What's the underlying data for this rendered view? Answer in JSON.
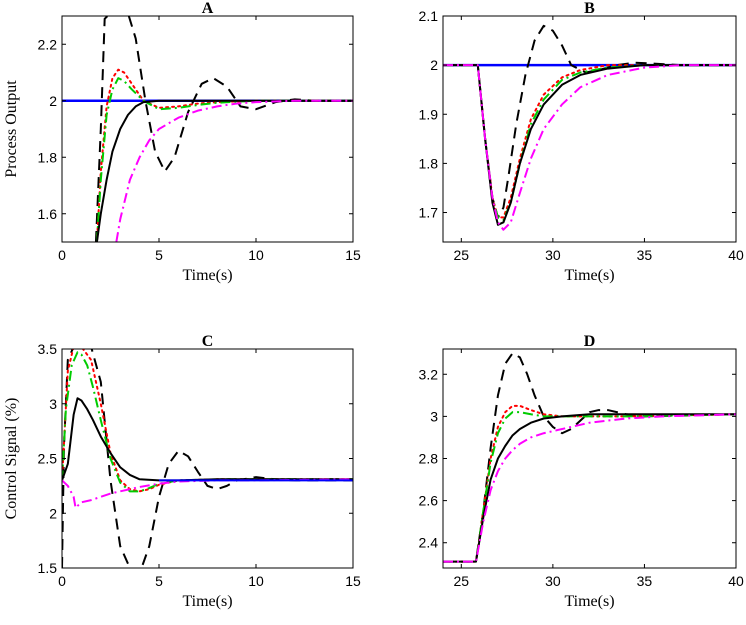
{
  "chart_data": [
    {
      "id": "A",
      "type": "line",
      "title": "A",
      "xlabel": "Time(s)",
      "ylabel": "Process Output",
      "xlim": [
        0,
        15
      ],
      "ylim": [
        1.5,
        2.3
      ],
      "xticks": [
        0,
        5,
        10,
        15
      ],
      "yticks": [
        1.6,
        1.8,
        2.0,
        2.2
      ],
      "xtick_labels": [
        "0",
        "5",
        "10",
        "15"
      ],
      "ytick_labels": [
        "1.6",
        "1.8",
        "2",
        "2.2"
      ],
      "series": [
        {
          "name": "setpoint",
          "color": "#0000ff",
          "style": "solid",
          "width": 2.5,
          "x": [
            0,
            15
          ],
          "y": [
            2.0,
            2.0
          ]
        },
        {
          "name": "dashed-black",
          "color": "#000000",
          "style": "dash",
          "width": 2,
          "x": [
            1.75,
            2.0,
            2.2,
            2.5,
            3.0,
            3.4,
            3.8,
            4.3,
            4.8,
            5.3,
            5.8,
            6.5,
            7.2,
            7.8,
            8.5,
            9.2,
            10.0,
            11.0,
            12.0,
            13.0,
            14.0,
            15.0
          ],
          "y": [
            1.5,
            1.9,
            2.29,
            2.31,
            2.31,
            2.31,
            2.22,
            2.0,
            1.82,
            1.75,
            1.8,
            1.96,
            2.06,
            2.08,
            2.05,
            1.98,
            1.97,
            1.995,
            2.005,
            2.0,
            2.0,
            2.0
          ]
        },
        {
          "name": "dotted-red",
          "color": "#ff0000",
          "style": "dot",
          "width": 2,
          "x": [
            1.8,
            2.0,
            2.3,
            2.6,
            2.9,
            3.2,
            3.6,
            4.2,
            5.0,
            6.0,
            7.0,
            8.0,
            10.0,
            12.0,
            15.0
          ],
          "y": [
            1.5,
            1.75,
            1.98,
            2.08,
            2.11,
            2.1,
            2.06,
            2.0,
            1.975,
            1.98,
            1.99,
            1.995,
            2.0,
            2.0,
            2.0
          ]
        },
        {
          "name": "dashdot-green",
          "color": "#00cc00",
          "style": "dashdot",
          "width": 2,
          "x": [
            1.8,
            2.0,
            2.3,
            2.6,
            2.9,
            3.2,
            3.6,
            4.2,
            5.0,
            6.0,
            7.0,
            8.0,
            10.0,
            12.0,
            15.0
          ],
          "y": [
            1.5,
            1.72,
            1.95,
            2.04,
            2.08,
            2.07,
            2.04,
            2.0,
            1.97,
            1.975,
            1.985,
            1.993,
            2.0,
            2.0,
            2.0
          ]
        },
        {
          "name": "solid-black",
          "color": "#000000",
          "style": "solid",
          "width": 2,
          "x": [
            1.8,
            2.0,
            2.3,
            2.6,
            3.0,
            3.4,
            3.8,
            4.2,
            5.0,
            6.0,
            8.0,
            10.0,
            15.0
          ],
          "y": [
            1.5,
            1.6,
            1.72,
            1.82,
            1.9,
            1.95,
            1.98,
            1.995,
            2.0,
            2.0,
            2.0,
            2.0,
            2.0
          ]
        },
        {
          "name": "dashdot-magenta",
          "color": "#ff00ff",
          "style": "dashdot",
          "width": 2,
          "x": [
            2.8,
            3.0,
            3.5,
            4.0,
            4.5,
            5.0,
            6.0,
            7.0,
            8.0,
            9.0,
            10.0,
            12.0,
            15.0
          ],
          "y": [
            1.5,
            1.58,
            1.72,
            1.8,
            1.86,
            1.9,
            1.94,
            1.965,
            1.98,
            1.99,
            1.995,
            2.0,
            2.0
          ]
        }
      ]
    },
    {
      "id": "B",
      "type": "line",
      "title": "B",
      "xlabel": "Time(s)",
      "ylabel": "",
      "xlim": [
        24,
        40
      ],
      "ylim": [
        1.64,
        2.1
      ],
      "xticks": [
        25,
        30,
        35,
        40
      ],
      "yticks": [
        1.7,
        1.8,
        1.9,
        2.0,
        2.1
      ],
      "xtick_labels": [
        "25",
        "30",
        "35",
        "40"
      ],
      "ytick_labels": [
        "1.7",
        "1.8",
        "1.9",
        "2",
        "2.1"
      ],
      "series": [
        {
          "name": "setpoint",
          "color": "#0000ff",
          "style": "solid",
          "width": 2.5,
          "x": [
            24,
            40
          ],
          "y": [
            2.0,
            2.0
          ]
        },
        {
          "name": "dashed-black",
          "color": "#000000",
          "style": "dash",
          "width": 2,
          "x": [
            24,
            25.9,
            26.3,
            26.7,
            27.0,
            27.3,
            27.6,
            28.0,
            28.5,
            29.0,
            29.5,
            30.0,
            30.5,
            31.0,
            31.8,
            32.5,
            33.5,
            34.5,
            35.5,
            37.0,
            40.0
          ],
          "y": [
            2.0,
            2.0,
            1.85,
            1.73,
            1.69,
            1.71,
            1.78,
            1.88,
            1.98,
            2.05,
            2.08,
            2.07,
            2.04,
            2.0,
            1.985,
            1.99,
            2.0,
            2.005,
            2.003,
            2.0,
            2.0
          ]
        },
        {
          "name": "dotted-red",
          "color": "#ff0000",
          "style": "dot",
          "width": 2,
          "x": [
            24,
            25.9,
            26.3,
            26.7,
            27.0,
            27.3,
            27.7,
            28.2,
            28.8,
            29.5,
            30.5,
            31.5,
            33.0,
            35.0,
            40.0
          ],
          "y": [
            2.0,
            2.0,
            1.85,
            1.73,
            1.69,
            1.69,
            1.73,
            1.81,
            1.89,
            1.94,
            1.975,
            1.99,
            2.0,
            2.0,
            2.0
          ]
        },
        {
          "name": "dashdot-green",
          "color": "#00cc00",
          "style": "dashdot",
          "width": 2,
          "x": [
            24,
            25.9,
            26.3,
            26.7,
            27.0,
            27.3,
            27.7,
            28.2,
            28.8,
            29.5,
            30.5,
            31.5,
            33.0,
            35.0,
            40.0
          ],
          "y": [
            2.0,
            2.0,
            1.85,
            1.73,
            1.69,
            1.685,
            1.72,
            1.8,
            1.88,
            1.93,
            1.97,
            1.985,
            1.995,
            2.0,
            2.0
          ]
        },
        {
          "name": "solid-black",
          "color": "#000000",
          "style": "solid",
          "width": 2,
          "x": [
            24,
            25.9,
            26.3,
            26.7,
            27.0,
            27.3,
            27.7,
            28.2,
            28.8,
            29.5,
            30.5,
            31.5,
            33.0,
            35.0,
            40.0
          ],
          "y": [
            2.0,
            2.0,
            1.85,
            1.72,
            1.675,
            1.68,
            1.72,
            1.8,
            1.87,
            1.92,
            1.96,
            1.98,
            1.993,
            2.0,
            2.0
          ]
        },
        {
          "name": "dashdot-magenta",
          "color": "#ff00ff",
          "style": "dashdot",
          "width": 2,
          "x": [
            24,
            25.9,
            26.3,
            26.7,
            27.0,
            27.3,
            27.7,
            28.2,
            28.8,
            29.5,
            30.5,
            31.5,
            33.0,
            35.0,
            37.0,
            40.0
          ],
          "y": [
            2.0,
            2.0,
            1.85,
            1.73,
            1.68,
            1.665,
            1.68,
            1.74,
            1.81,
            1.87,
            1.92,
            1.955,
            1.98,
            1.995,
            2.0,
            2.0
          ]
        }
      ]
    },
    {
      "id": "C",
      "type": "line",
      "title": "C",
      "xlabel": "Time(s)",
      "ylabel": "Control Signal (%)",
      "xlim": [
        0,
        15
      ],
      "ylim": [
        1.5,
        3.5
      ],
      "xticks": [
        0,
        5,
        10,
        15
      ],
      "yticks": [
        1.5,
        2.0,
        2.5,
        3.0,
        3.5
      ],
      "xtick_labels": [
        "0",
        "5",
        "10",
        "15"
      ],
      "ytick_labels": [
        "1.5",
        "2",
        "2.5",
        "3",
        "3.5"
      ],
      "series": [
        {
          "name": "dashed-black",
          "color": "#000000",
          "style": "dash",
          "width": 2,
          "x": [
            0,
            0.1,
            0.3,
            0.6,
            1.0,
            1.5,
            2.0,
            2.5,
            3.0,
            3.5,
            4.0,
            4.5,
            5.0,
            5.5,
            6.0,
            6.5,
            7.0,
            7.5,
            8.0,
            8.5,
            9.0,
            10.0,
            11.0,
            12.0,
            15.0
          ],
          "y": [
            1.5,
            2.6,
            3.4,
            3.52,
            3.52,
            3.52,
            3.2,
            2.3,
            1.7,
            1.5,
            1.45,
            1.7,
            2.15,
            2.45,
            2.57,
            2.52,
            2.38,
            2.25,
            2.22,
            2.25,
            2.3,
            2.33,
            2.31,
            2.3,
            2.3
          ]
        },
        {
          "name": "dotted-red",
          "color": "#ff0000",
          "style": "dot",
          "width": 2,
          "x": [
            0,
            0.3,
            0.6,
            1.0,
            1.5,
            2.0,
            2.5,
            3.0,
            3.5,
            4.0,
            4.5,
            5.0,
            6.0,
            8.0,
            10.0,
            15.0
          ],
          "y": [
            2.3,
            3.3,
            3.52,
            3.52,
            3.4,
            3.0,
            2.55,
            2.3,
            2.22,
            2.2,
            2.22,
            2.26,
            2.3,
            2.31,
            2.31,
            2.31
          ]
        },
        {
          "name": "dashdot-green",
          "color": "#00cc00",
          "style": "dashdot",
          "width": 2,
          "x": [
            0,
            0.2,
            0.5,
            0.8,
            1.0,
            1.3,
            1.6,
            2.0,
            2.5,
            3.0,
            3.5,
            4.0,
            4.5,
            5.0,
            6.0,
            8.0,
            10.0,
            15.0
          ],
          "y": [
            2.3,
            2.95,
            3.35,
            3.47,
            3.45,
            3.35,
            3.15,
            2.85,
            2.5,
            2.28,
            2.2,
            2.2,
            2.23,
            2.27,
            2.3,
            2.31,
            2.31,
            2.31
          ]
        },
        {
          "name": "solid-black",
          "color": "#000000",
          "style": "solid",
          "width": 2,
          "x": [
            0,
            0.3,
            0.6,
            0.8,
            1.0,
            1.3,
            1.6,
            2.0,
            2.5,
            3.0,
            3.5,
            4.0,
            5.0,
            6.0,
            8.0,
            10.0,
            12.0,
            15.0
          ],
          "y": [
            2.3,
            2.45,
            2.9,
            3.05,
            3.03,
            2.95,
            2.85,
            2.7,
            2.55,
            2.42,
            2.35,
            2.31,
            2.3,
            2.3,
            2.31,
            2.31,
            2.31,
            2.31
          ]
        },
        {
          "name": "dashdot-magenta",
          "color": "#ff00ff",
          "style": "dashdot",
          "width": 2,
          "x": [
            0,
            0.3,
            0.6,
            0.7,
            1.0,
            1.5,
            2.0,
            2.5,
            3.0,
            3.5,
            4.0,
            5.0,
            6.0,
            8.0,
            10.0,
            15.0
          ],
          "y": [
            2.3,
            2.25,
            2.15,
            2.05,
            2.1,
            2.12,
            2.15,
            2.18,
            2.2,
            2.22,
            2.24,
            2.27,
            2.29,
            2.3,
            2.3,
            2.31
          ]
        },
        {
          "name": "setpoint",
          "color": "#0000ff",
          "style": "solid",
          "width": 2,
          "x": [
            5.0,
            15.0
          ],
          "y": [
            2.3,
            2.3
          ]
        }
      ]
    },
    {
      "id": "D",
      "type": "line",
      "title": "D",
      "xlabel": "Time(s)",
      "ylabel": "",
      "xlim": [
        24,
        40
      ],
      "ylim": [
        2.28,
        3.32
      ],
      "xticks": [
        25,
        30,
        35,
        40
      ],
      "yticks": [
        2.4,
        2.6,
        2.8,
        3.0,
        3.2
      ],
      "xtick_labels": [
        "25",
        "30",
        "35",
        "40"
      ],
      "ytick_labels": [
        "2.4",
        "2.6",
        "2.8",
        "3",
        "3.2"
      ],
      "series": [
        {
          "name": "dashed-black",
          "color": "#000000",
          "style": "dash",
          "width": 2,
          "x": [
            24,
            25.8,
            26.2,
            26.6,
            27.0,
            27.4,
            27.8,
            28.2,
            28.6,
            29.0,
            29.5,
            30.0,
            30.5,
            31.0,
            31.5,
            32.0,
            32.5,
            33.0,
            34.0,
            35.0,
            40.0
          ],
          "y": [
            2.31,
            2.31,
            2.55,
            2.85,
            3.1,
            3.25,
            3.3,
            3.28,
            3.2,
            3.1,
            3.0,
            2.95,
            2.92,
            2.94,
            2.98,
            3.02,
            3.03,
            3.03,
            3.01,
            3.0,
            3.01
          ]
        },
        {
          "name": "dotted-red",
          "color": "#ff0000",
          "style": "dot",
          "width": 2,
          "x": [
            24,
            25.8,
            26.2,
            26.6,
            27.0,
            27.4,
            27.8,
            28.2,
            28.8,
            29.5,
            30.5,
            32.0,
            34.0,
            40.0
          ],
          "y": [
            2.31,
            2.31,
            2.55,
            2.8,
            2.95,
            3.02,
            3.05,
            3.05,
            3.03,
            3.01,
            3.0,
            3.0,
            3.0,
            3.01
          ]
        },
        {
          "name": "dashdot-green",
          "color": "#00cc00",
          "style": "dashdot",
          "width": 2,
          "x": [
            24,
            25.8,
            26.2,
            26.6,
            27.0,
            27.4,
            27.8,
            28.2,
            28.8,
            29.5,
            30.5,
            32.0,
            34.0,
            40.0
          ],
          "y": [
            2.31,
            2.31,
            2.55,
            2.78,
            2.92,
            2.99,
            3.02,
            3.02,
            3.01,
            3.0,
            3.0,
            3.0,
            3.0,
            3.01
          ]
        },
        {
          "name": "solid-black",
          "color": "#000000",
          "style": "solid",
          "width": 2,
          "x": [
            24,
            25.8,
            26.2,
            26.6,
            27.0,
            27.4,
            27.8,
            28.2,
            28.8,
            29.5,
            30.5,
            32.0,
            34.0,
            40.0
          ],
          "y": [
            2.31,
            2.31,
            2.52,
            2.7,
            2.8,
            2.86,
            2.91,
            2.94,
            2.97,
            2.99,
            3.0,
            3.01,
            3.01,
            3.01
          ]
        },
        {
          "name": "dashdot-magenta",
          "color": "#ff00ff",
          "style": "dashdot",
          "width": 2,
          "x": [
            24,
            25.8,
            26.2,
            26.6,
            27.0,
            27.4,
            27.8,
            28.2,
            28.8,
            29.5,
            30.0,
            31.0,
            32.0,
            33.0,
            34.0,
            36.0,
            40.0
          ],
          "y": [
            2.31,
            2.31,
            2.5,
            2.65,
            2.74,
            2.8,
            2.84,
            2.87,
            2.9,
            2.92,
            2.93,
            2.95,
            2.97,
            2.98,
            2.99,
            3.0,
            3.01
          ]
        }
      ]
    }
  ]
}
